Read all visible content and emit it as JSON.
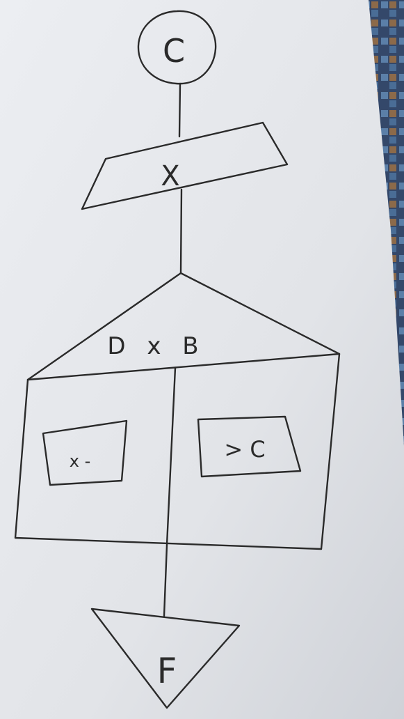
{
  "diagram": {
    "start_label": "C",
    "input_label": "X",
    "decision_label": "D x B",
    "left_branch_label": "x -",
    "right_branch_label": "> C",
    "end_label": "F"
  },
  "colors": {
    "paper": "#e4e6ea",
    "ink": "#2a2a2a",
    "background_fabric": "#3a4a66"
  }
}
